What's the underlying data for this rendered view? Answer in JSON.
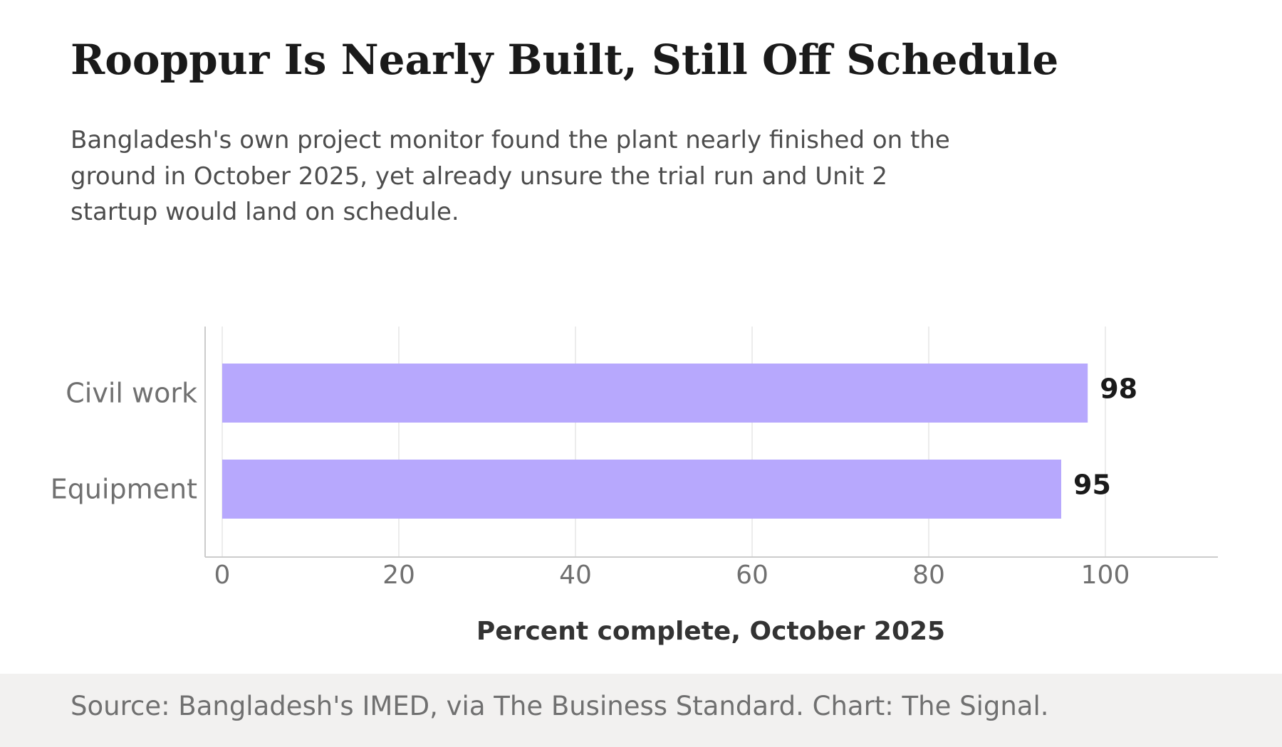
{
  "chart_data": {
    "type": "bar",
    "orientation": "horizontal",
    "title": "Rooppur Is Nearly Built, Still Off Schedule",
    "subtitle": "Bangladesh's own project monitor found the plant nearly finished on the ground in October 2025, yet already unsure the trial run and Unit 2 startup would land on schedule.",
    "categories": [
      "Civil work",
      "Equipment"
    ],
    "values": [
      98,
      95
    ],
    "xlabel": "Percent complete, October 2025",
    "xlim": [
      0,
      110
    ],
    "xticks": [
      0,
      20,
      40,
      60,
      80,
      100
    ],
    "grid": true,
    "colors": {
      "bar": "#b7a8fd",
      "grid": "#e6e6e6",
      "axis": "#cccccc"
    }
  },
  "footer": {
    "source": "Source: Bangladesh's IMED, via The Business Standard. Chart: The Signal."
  }
}
